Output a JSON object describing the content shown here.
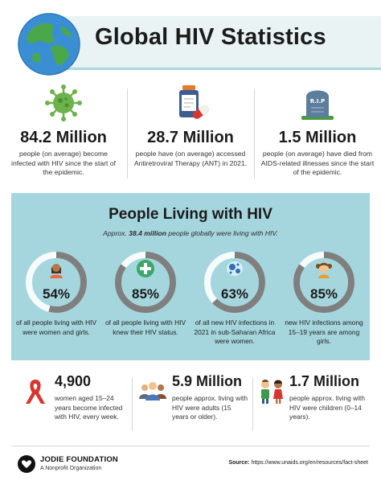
{
  "header": {
    "title": "Global HIV Statistics",
    "globe_icon": "globe-icon"
  },
  "top_stats": [
    {
      "icon": "virus-icon",
      "value": "84.2 Million",
      "description": "people (on average) become infected with HIV since the start of the epidemic."
    },
    {
      "icon": "medicine-icon",
      "value": "28.7 Million",
      "description": "people have (on average) accessed Antiretroviral Therapy (ANT) in 2021."
    },
    {
      "icon": "tombstone-icon",
      "value": "1.5 Million",
      "description": "people (on average) have died from AIDS-related illnesses since the start of the epidemic."
    }
  ],
  "panel": {
    "title": "People Living with HIV",
    "subtitle_prefix": "Approx.",
    "subtitle_bold": "38.4 million",
    "subtitle_suffix": "people globally were living with HIV.",
    "tombstone_text": "R.I.P",
    "donuts": [
      {
        "icon": "woman-icon",
        "percent": "54%",
        "fraction": 0.54,
        "description": "of all people living with HIV were women and girls."
      },
      {
        "icon": "medical-cross-icon",
        "percent": "85%",
        "fraction": 0.85,
        "description": "of all people living with HIV knew their HIV status."
      },
      {
        "icon": "cells-icon",
        "percent": "63%",
        "fraction": 0.63,
        "description": "of all new HIV infections in 2021 in sub-Saharan Africa were women."
      },
      {
        "icon": "girl-icon",
        "percent": "85%",
        "fraction": 0.85,
        "description": "new HIV infections among 15–19 years are among girls."
      }
    ]
  },
  "bottom_stats": [
    {
      "icon": "awareness-ribbon-icon",
      "value": "4,900",
      "description": "women aged 15–24 years become infected with HIV, every week."
    },
    {
      "icon": "adults-group-icon",
      "value": "5.9 Million",
      "description": "people approx. living with HIV were adults (15 years or older)."
    },
    {
      "icon": "children-icon",
      "value": "1.7 Million",
      "description": "people approx. living with HIV were children (0–14 years)."
    }
  ],
  "footer": {
    "brand": "JODIE FOUNDATION",
    "brand_sub": "A Nonprofit Organization",
    "source_label": "Source:",
    "source_url": "https://www.unaids.org/en/resources/fact-sheet"
  },
  "colors": {
    "panel_bg": "#a5d6de",
    "donut_track": "#ffffff",
    "donut_fill": "#7f7f7f",
    "header_band": "#e9f3f4",
    "virus_green": "#6bb34a",
    "ribbon_red": "#d9352e"
  }
}
